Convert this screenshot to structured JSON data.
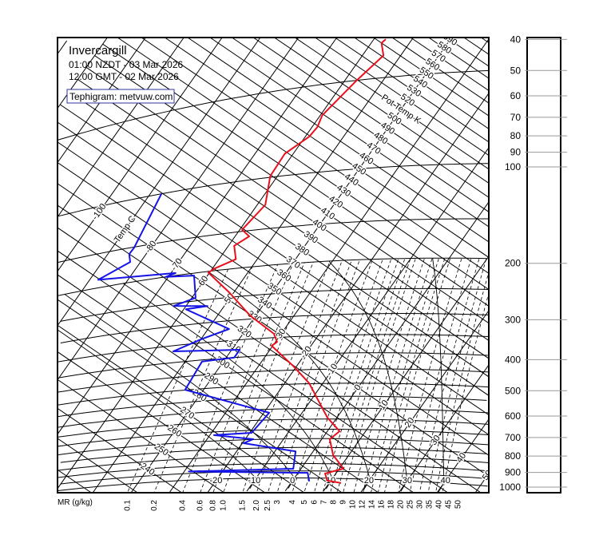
{
  "header": {
    "station": "Invercargill",
    "local_time": "01:00 NZDT - 03 Mar 2026",
    "utc_time": "12:00 GMT - 02 Mar 2026",
    "credit": "Tephigram: metvuw.com"
  },
  "chart_data": {
    "type": "line",
    "diagram": "tephigram",
    "x_quantity": "temperature (°C)",
    "y_quantity": "pressure (hPa)",
    "y_scale": "log",
    "pressure_axis": {
      "ticks": [
        40,
        50,
        60,
        70,
        80,
        90,
        100,
        200,
        300,
        400,
        500,
        600,
        700,
        800,
        900,
        1000
      ],
      "range": [
        40,
        1000
      ]
    },
    "mr_axis": {
      "label": "MR (g/kg)",
      "ticks": [
        "0.1",
        "0.2",
        "0.4",
        "0.6",
        "0.8",
        "1.0",
        "1.5",
        "2.0",
        "2.5",
        "3",
        "4",
        "5",
        "6",
        "7",
        "8",
        "9",
        "10",
        "12",
        "14",
        "16",
        "18",
        "20",
        "25",
        "30",
        "35",
        "40",
        "45",
        "50"
      ]
    },
    "isotherm_label_title": "Temp C",
    "isotherm_labels": [
      "-100",
      "-80",
      "-70",
      "-60",
      "-50",
      "-30",
      "-20",
      "-10",
      "0",
      "10",
      "20",
      "30",
      "40",
      "50"
    ],
    "isotherm_bottom_labels": [
      "-20",
      "-10",
      "0",
      "10",
      "20",
      "30",
      "40"
    ],
    "theta_label_title": "Pot Temp K",
    "theta_labels": [
      "240",
      "250",
      "260",
      "270",
      "280",
      "290",
      "300",
      "310",
      "320",
      "330",
      "340",
      "350",
      "360",
      "370",
      "380",
      "390",
      "400",
      "410",
      "420",
      "430",
      "440",
      "450",
      "460",
      "470",
      "480",
      "490",
      "500",
      "520",
      "530",
      "540",
      "550",
      "560",
      "570",
      "580",
      "590"
    ],
    "saturated_adiabats_c": [
      -10,
      0,
      10,
      20,
      30,
      40
    ],
    "grid": true,
    "series": [
      {
        "color": "#e8101c",
        "points_p_T": [
          [
            37,
            -56.9
          ],
          [
            38,
            -57.3
          ],
          [
            42,
            -54.5
          ],
          [
            50,
            -56.9
          ],
          [
            64,
            -59.5
          ],
          [
            70,
            -58.6
          ],
          [
            75,
            -59.0
          ],
          [
            84,
            -62.2
          ],
          [
            99,
            -61.9
          ],
          [
            124,
            -57.9
          ],
          [
            148,
            -59.4
          ],
          [
            157,
            -56.3
          ],
          [
            167,
            -58.5
          ],
          [
            186,
            -55.6
          ],
          [
            197,
            -59.5
          ],
          [
            202,
            -60.3
          ],
          [
            241,
            -51.1
          ],
          [
            292,
            -41.5
          ],
          [
            340,
            -31.9
          ],
          [
            362,
            -29.6
          ],
          [
            372,
            -30.3
          ],
          [
            436,
            -21.0
          ],
          [
            498,
            -13.6
          ],
          [
            643,
            -2.5
          ],
          [
            710,
            3.2
          ],
          [
            753,
            2.1
          ],
          [
            845,
            5.9
          ],
          [
            931,
            11.1
          ],
          [
            967,
            7.2
          ],
          [
            1018,
            9.1
          ],
          [
            1033,
            13.1
          ]
        ]
      },
      {
        "color": "#1414e6",
        "points_p_T": [
          [
            100,
            -87.1
          ],
          [
            151,
            -84.3
          ],
          [
            158,
            -84.4
          ],
          [
            169,
            -82.7
          ],
          [
            187,
            -87.8
          ],
          [
            196,
            -68.8
          ],
          [
            200,
            -70.7
          ],
          [
            204,
            -63.5
          ],
          [
            244,
            -59.0
          ],
          [
            255,
            -63.2
          ],
          [
            263,
            -54.4
          ],
          [
            265,
            -59.4
          ],
          [
            320,
            -44.5
          ],
          [
            340,
            -49.9
          ],
          [
            366,
            -55.0
          ],
          [
            378,
            -37.9
          ],
          [
            400,
            -37.9
          ],
          [
            405,
            -45.6
          ],
          [
            499,
            -44.8
          ],
          [
            616,
            -18.6
          ],
          [
            713,
            -19.5
          ],
          [
            717,
            -28.9
          ],
          [
            748,
            -17.9
          ],
          [
            769,
            -19.7
          ],
          [
            823,
            -4.6
          ],
          [
            935,
            -2.0
          ],
          [
            936,
            -28.8
          ],
          [
            963,
            2.5
          ],
          [
            1025,
            4.5
          ]
        ]
      }
    ]
  }
}
